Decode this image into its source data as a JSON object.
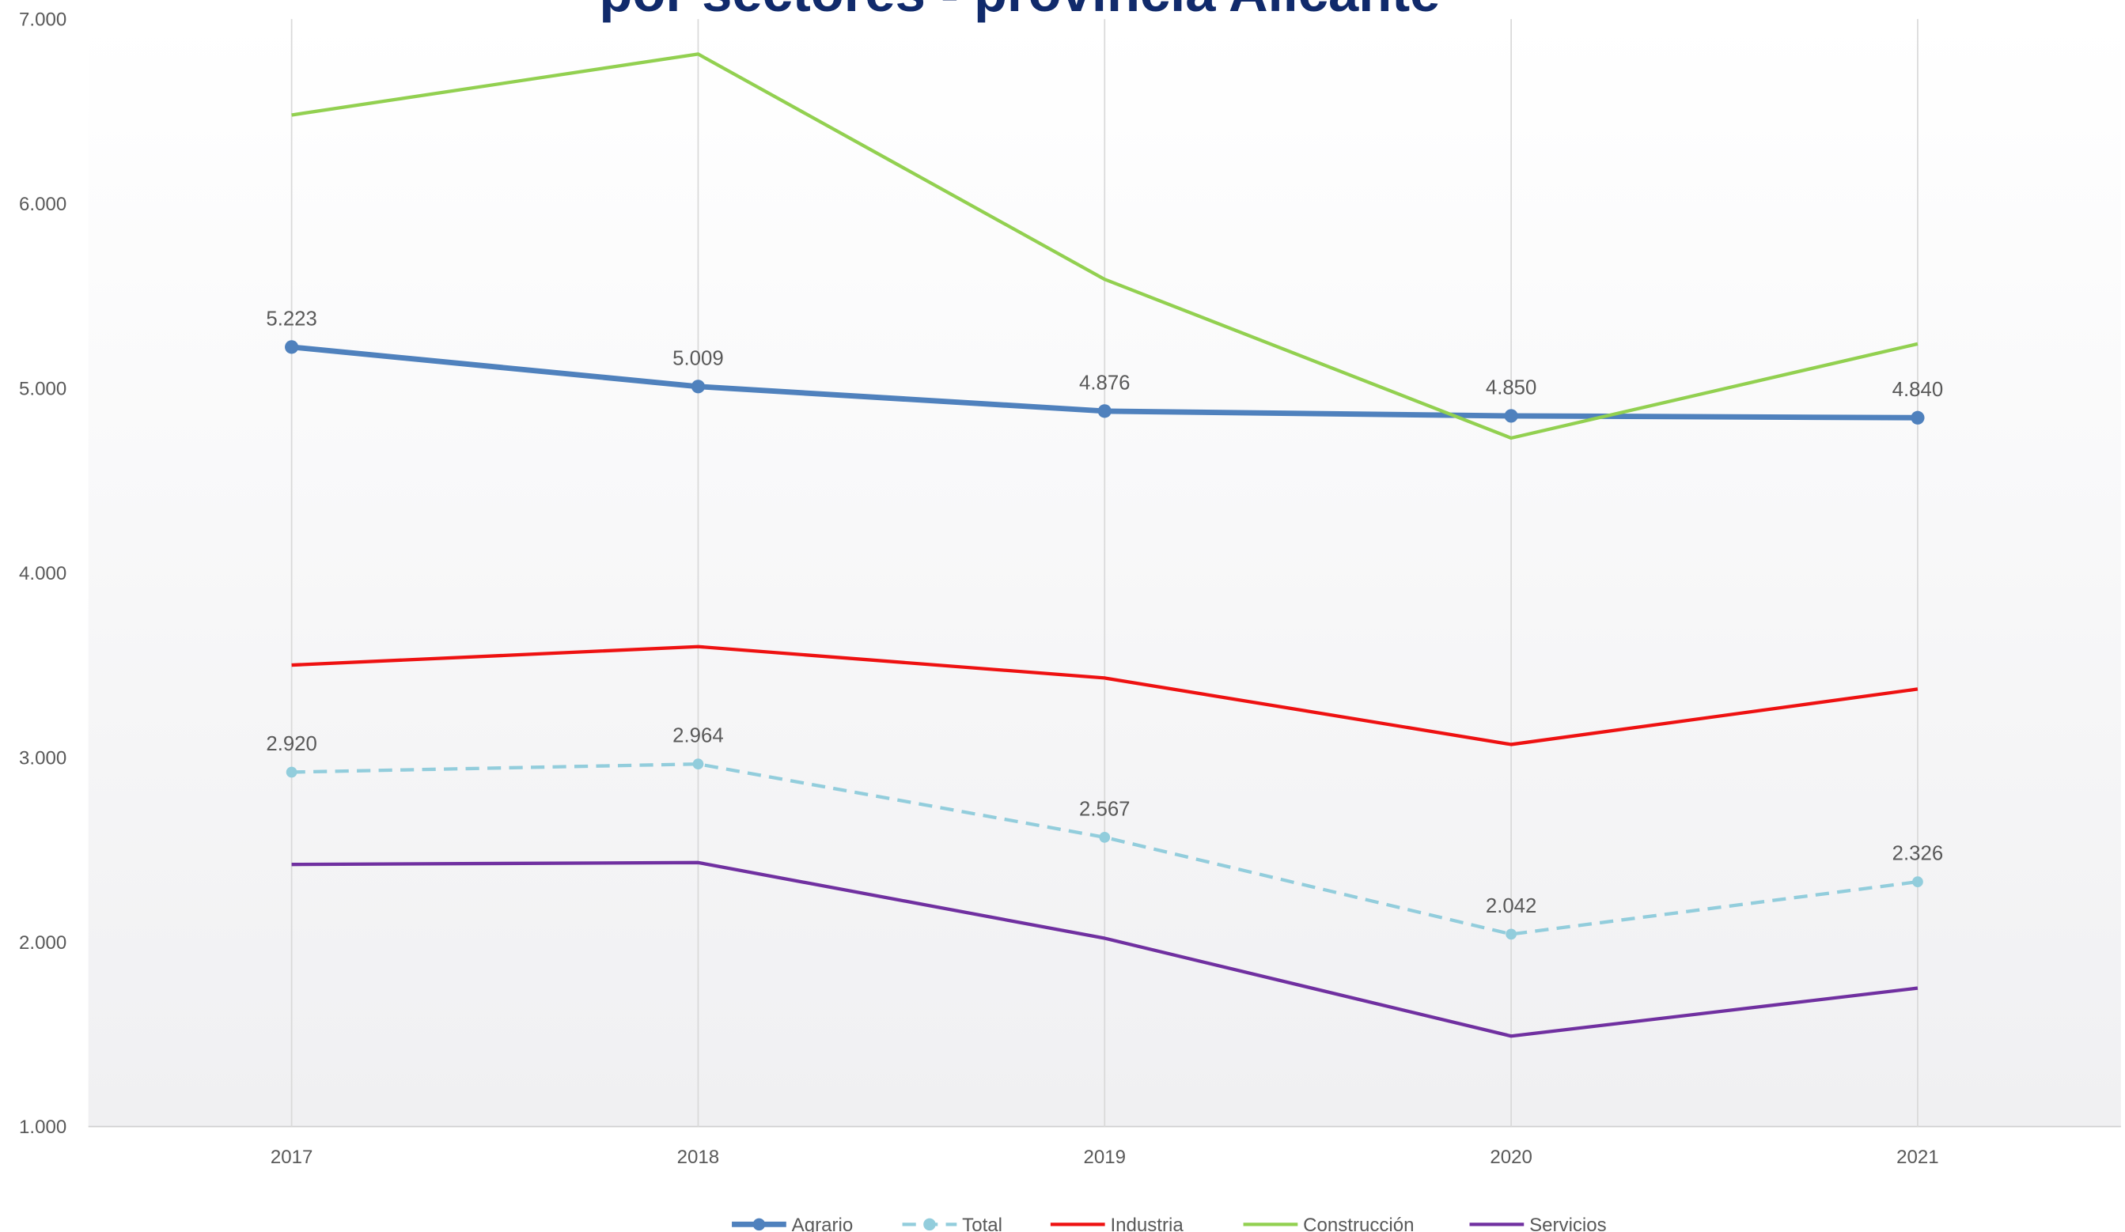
{
  "chart_data": {
    "type": "line",
    "title": "por sectores - provincia Alicante",
    "categories": [
      "2017",
      "2018",
      "2019",
      "2020",
      "2021"
    ],
    "series": [
      {
        "name": "Agrario",
        "color": "#4f81bd",
        "width": 4,
        "marker": true,
        "dashed": false,
        "values": [
          5223,
          5009,
          4876,
          4850,
          4840
        ],
        "value_labels": [
          "5.223",
          "5.009",
          "4.876",
          "4.850",
          "4.840"
        ]
      },
      {
        "name": "Total",
        "color": "#92cddc",
        "width": 2.5,
        "marker": true,
        "dashed": true,
        "values": [
          2920,
          2964,
          2567,
          2042,
          2326
        ],
        "value_labels": [
          "2.920",
          "2.964",
          "2.567",
          "2.042",
          "2.326"
        ]
      },
      {
        "name": "Industria",
        "color": "#ee1111",
        "width": 2.5,
        "marker": false,
        "dashed": false,
        "values": [
          3500,
          3600,
          3430,
          3070,
          3370
        ]
      },
      {
        "name": "Construcción",
        "color": "#92d050",
        "width": 2.5,
        "marker": false,
        "dashed": false,
        "values": [
          6480,
          6810,
          5590,
          4730,
          5240
        ]
      },
      {
        "name": "Servicios",
        "color": "#7030a0",
        "width": 2.5,
        "marker": false,
        "dashed": false,
        "values": [
          2420,
          2430,
          2020,
          1490,
          1750
        ]
      }
    ],
    "ylim": [
      1000,
      7000
    ],
    "yticks": [
      {
        "value": 1000,
        "label": "1.000"
      },
      {
        "value": 2000,
        "label": "2.000"
      },
      {
        "value": 3000,
        "label": "3.000"
      },
      {
        "value": 4000,
        "label": "4.000"
      },
      {
        "value": 5000,
        "label": "5.000"
      },
      {
        "value": 6000,
        "label": "6.000"
      },
      {
        "value": 7000,
        "label": "7.000"
      }
    ],
    "grid": true,
    "legend": "bottom"
  }
}
